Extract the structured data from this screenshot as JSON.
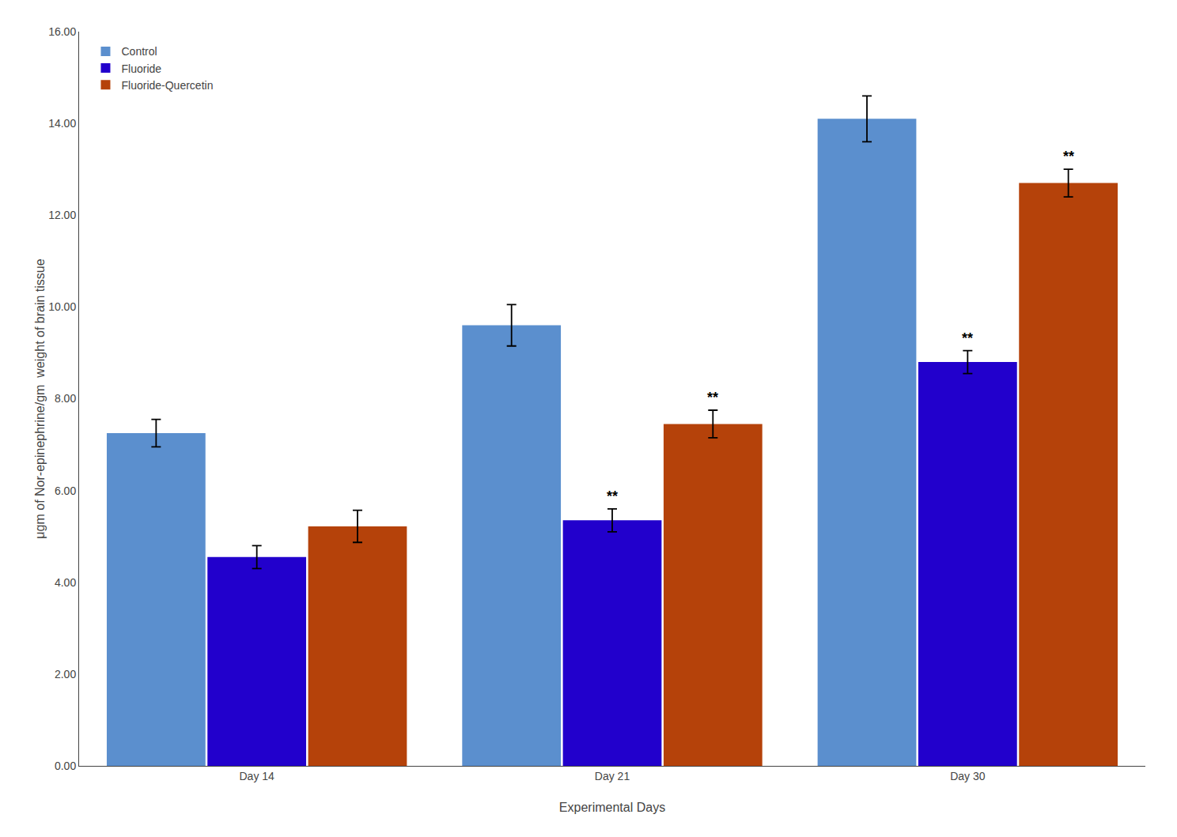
{
  "chart_data": {
    "type": "bar",
    "categories": [
      "Day 14",
      "Day 21",
      "Day 30"
    ],
    "series": [
      {
        "name": "Control",
        "color": "#5b8fce",
        "values": [
          7.25,
          9.6,
          14.1
        ],
        "errors": [
          0.3,
          0.45,
          0.5
        ]
      },
      {
        "name": "Fluoride",
        "color": "#2200cc",
        "values": [
          4.55,
          5.35,
          8.8
        ],
        "errors": [
          0.25,
          0.25,
          0.25
        ]
      },
      {
        "name": "Fluoride-Quercetin",
        "color": "#b5420a",
        "values": [
          5.22,
          7.45,
          12.7
        ],
        "errors": [
          0.35,
          0.3,
          0.3
        ]
      }
    ],
    "xlabel": "Experimental Days",
    "ylabel": "μgm of Nor-epinephrine/gm  weight of brain tissue",
    "ylim": [
      0,
      16.0
    ],
    "yticks": [
      {
        "value": 0,
        "label": "0.00"
      },
      {
        "value": 2,
        "label": "2.00"
      },
      {
        "value": 4,
        "label": "4.00"
      },
      {
        "value": 6,
        "label": "6.00"
      },
      {
        "value": 8,
        "label": "8.00"
      },
      {
        "value": 10,
        "label": "10.00"
      },
      {
        "value": 12,
        "label": "12.00"
      },
      {
        "value": 14,
        "label": "14.00"
      },
      {
        "value": 16,
        "label": "16.00"
      }
    ],
    "annotations": [
      {
        "text": "**",
        "category": "Day 21",
        "series": "Fluoride"
      },
      {
        "text": "**",
        "category": "Day 21",
        "series": "Fluoride-Quercetin"
      },
      {
        "text": "**",
        "category": "Day 30",
        "series": "Fluoride"
      },
      {
        "text": "**",
        "category": "Day 30",
        "series": "Fluoride-Quercetin"
      }
    ],
    "legend": "upper left",
    "grid": false
  }
}
